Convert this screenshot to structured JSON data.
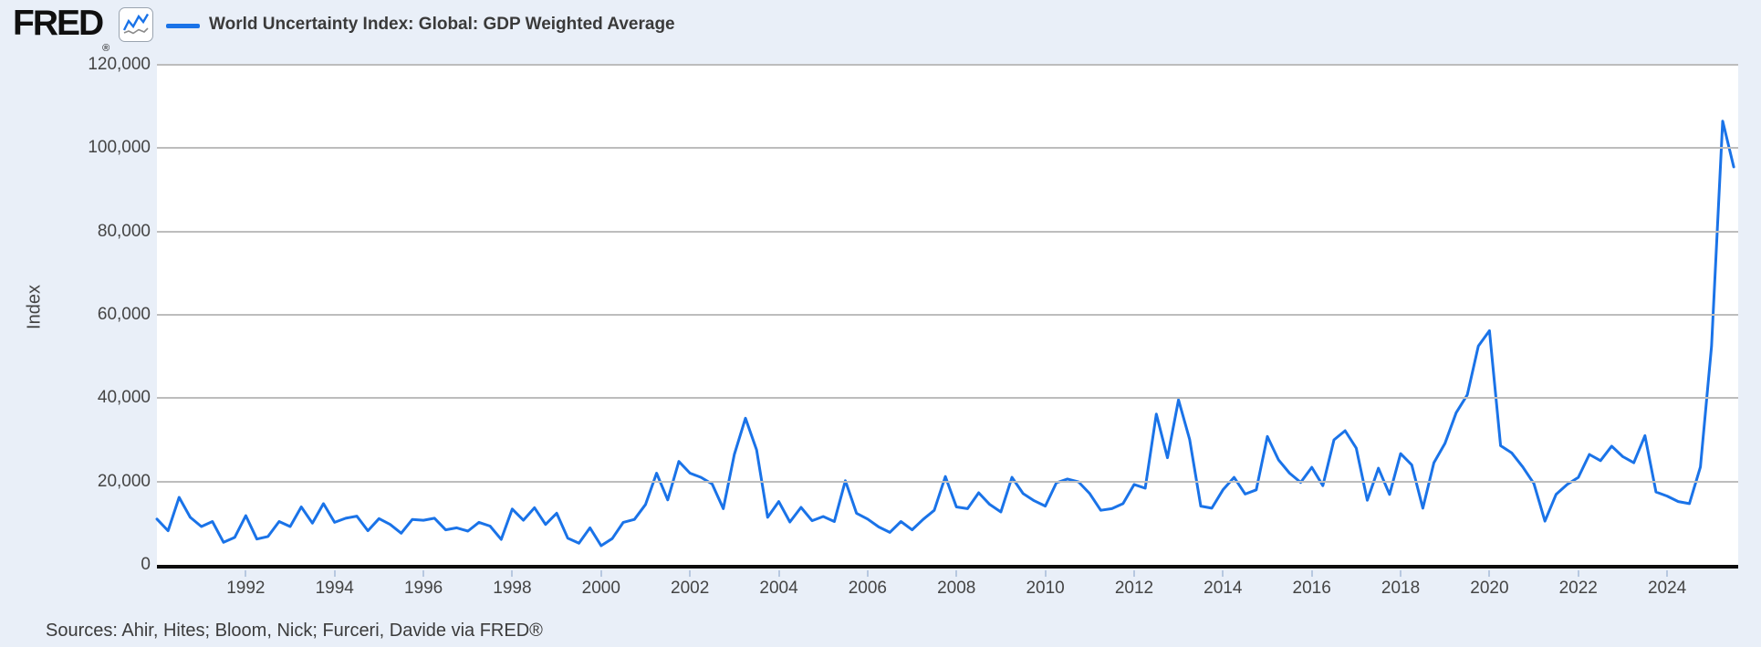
{
  "page": {
    "background": "#e9eff8",
    "plot_background": "#ffffff"
  },
  "header": {
    "logo_text": "FRED",
    "logo_registered": "®",
    "legend": {
      "swatch_color": "#1a73e8",
      "label": "World Uncertainty Index: Global: GDP Weighted Average"
    }
  },
  "y_axis": {
    "label": "Index",
    "ticks": [
      {
        "label": "120,000",
        "value": 120000
      },
      {
        "label": "100,000",
        "value": 100000
      },
      {
        "label": "80,000",
        "value": 80000
      },
      {
        "label": "60,000",
        "value": 60000
      },
      {
        "label": "40,000",
        "value": 40000
      },
      {
        "label": "20,000",
        "value": 20000
      },
      {
        "label": "0",
        "value": 0
      }
    ]
  },
  "x_axis": {
    "ticks": [
      {
        "label": "1992",
        "year": 1992
      },
      {
        "label": "1994",
        "year": 1994
      },
      {
        "label": "1996",
        "year": 1996
      },
      {
        "label": "1998",
        "year": 1998
      },
      {
        "label": "2000",
        "year": 2000
      },
      {
        "label": "2002",
        "year": 2002
      },
      {
        "label": "2004",
        "year": 2004
      },
      {
        "label": "2006",
        "year": 2006
      },
      {
        "label": "2008",
        "year": 2008
      },
      {
        "label": "2010",
        "year": 2010
      },
      {
        "label": "2012",
        "year": 2012
      },
      {
        "label": "2014",
        "year": 2014
      },
      {
        "label": "2016",
        "year": 2016
      },
      {
        "label": "2018",
        "year": 2018
      },
      {
        "label": "2020",
        "year": 2020
      },
      {
        "label": "2022",
        "year": 2022
      },
      {
        "label": "2024",
        "year": 2024
      }
    ]
  },
  "footer": {
    "sources": "Sources: Ahir, Hites; Bloom, Nick; Furceri, Davide via FRED®"
  },
  "chart_data": {
    "type": "line",
    "title": "World Uncertainty Index: Global: GDP Weighted Average",
    "ylabel": "Index",
    "ylim": [
      0,
      120000
    ],
    "x_domain": [
      1990,
      2025.6
    ],
    "frequency": "quarterly",
    "start": "1990 Q1",
    "end": "2025 Q3",
    "line_color": "#1a73e8",
    "gridline_color": "#bdbdbd",
    "legend_position": "top-left",
    "grid": "horizontal-only",
    "values": [
      11000,
      8200,
      16200,
      11400,
      9200,
      10400,
      5400,
      6600,
      11800,
      6200,
      6800,
      10400,
      9200,
      13900,
      10000,
      14700,
      10200,
      11200,
      11700,
      8200,
      11100,
      9700,
      7600,
      10900,
      10700,
      11200,
      8400,
      8900,
      8100,
      10200,
      9300,
      6100,
      13400,
      10700,
      13700,
      9700,
      12400,
      6400,
      5200,
      8900,
      4600,
      6300,
      10200,
      10900,
      14500,
      22000,
      15600,
      24800,
      22000,
      21000,
      19400,
      13500,
      26500,
      35200,
      27600,
      11400,
      15200,
      10300,
      13800,
      10600,
      11600,
      10400,
      20200,
      12400,
      11000,
      9100,
      7800,
      10400,
      8400,
      10900,
      13100,
      21200,
      13900,
      13500,
      17300,
      14500,
      12700,
      21000,
      17100,
      15400,
      14100,
      19700,
      20600,
      19900,
      17100,
      13100,
      13500,
      14700,
      19300,
      18400,
      36200,
      25700,
      39600,
      30100,
      14100,
      13600,
      18000,
      21000,
      17000,
      18000,
      30800,
      25200,
      22000,
      19800,
      23400,
      19000,
      30000,
      32200,
      28000,
      15500,
      23200,
      16900,
      26700,
      24000,
      13600,
      24500,
      29200,
      36500,
      40800,
      52500,
      56200,
      28600,
      26900,
      23500,
      19500,
      10500,
      16900,
      19300,
      21000,
      26500,
      25000,
      28500,
      26000,
      24500,
      31000,
      17500,
      16500,
      15200,
      14700,
      23500,
      52500,
      106500,
      95500
    ]
  }
}
